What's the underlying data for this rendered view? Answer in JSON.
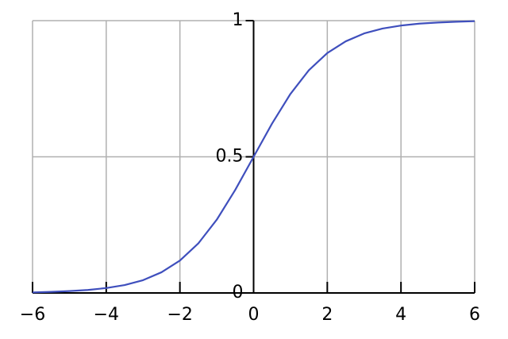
{
  "chart_data": {
    "type": "line",
    "x": [
      -6,
      -5.5,
      -5,
      -4.5,
      -4,
      -3.5,
      -3,
      -2.5,
      -2,
      -1.5,
      -1,
      -0.5,
      0,
      0.5,
      1,
      1.5,
      2,
      2.5,
      3,
      3.5,
      4,
      4.5,
      5,
      5.5,
      6
    ],
    "series": [
      {
        "color": "#3f4fbd",
        "values": [
          0.002,
          0.004,
          0.007,
          0.011,
          0.018,
          0.029,
          0.047,
          0.076,
          0.119,
          0.182,
          0.269,
          0.378,
          0.5,
          0.622,
          0.731,
          0.818,
          0.881,
          0.924,
          0.953,
          0.971,
          0.982,
          0.989,
          0.993,
          0.996,
          0.998
        ]
      }
    ],
    "xlim": [
      -6,
      6
    ],
    "ylim": [
      0,
      1
    ],
    "xticks": [
      {
        "value": -6,
        "label": "−6"
      },
      {
        "value": -4,
        "label": "−4"
      },
      {
        "value": -2,
        "label": "−2"
      },
      0,
      2,
      4,
      6
    ],
    "yticks": [
      0,
      0.5,
      1
    ],
    "grid": true
  }
}
